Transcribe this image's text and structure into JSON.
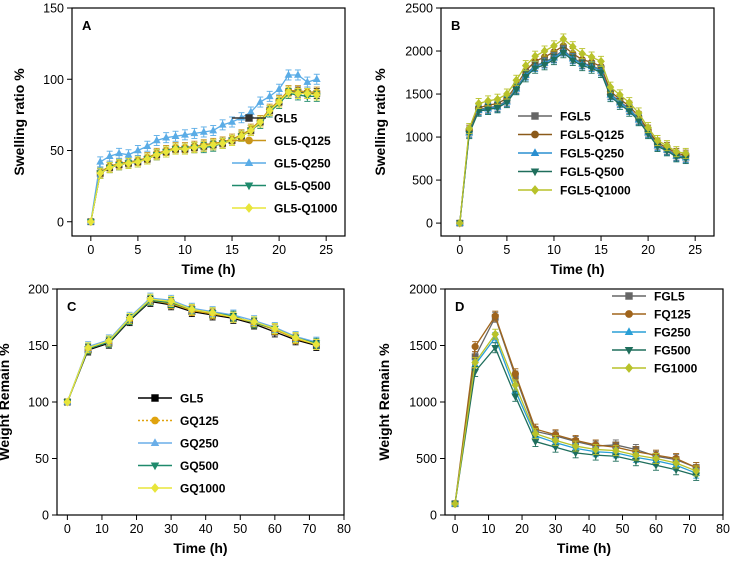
{
  "chart_data": [
    {
      "type": "line",
      "panel_label": "A",
      "xlabel": "Time (h)",
      "ylabel": "Swelling ratio %",
      "xlim": [
        -2,
        27
      ],
      "ylim": [
        -10,
        150
      ],
      "xticks": [
        0,
        5,
        10,
        15,
        20,
        25
      ],
      "yticks": [
        0,
        50,
        100,
        150
      ],
      "legend_position": "bottom-right",
      "x": [
        0,
        1,
        2,
        3,
        4,
        5,
        6,
        7,
        8,
        9,
        10,
        11,
        12,
        13,
        14,
        15,
        16,
        17,
        18,
        19,
        20,
        21,
        22,
        23,
        24
      ],
      "series": [
        {
          "name": "GL5",
          "color": "#333333",
          "marker": "square",
          "values": [
            0,
            34,
            38,
            40,
            41,
            42,
            44,
            47,
            49,
            51,
            51,
            52,
            53,
            54,
            55,
            57,
            60,
            64,
            70,
            78,
            84,
            91,
            91,
            90,
            90
          ]
        },
        {
          "name": "GL5-Q125",
          "color": "#c8951a",
          "marker": "circle",
          "values": [
            0,
            35,
            39,
            41,
            42,
            43,
            45,
            48,
            50,
            52,
            52,
            53,
            54,
            55,
            56,
            58,
            61,
            65,
            71,
            79,
            85,
            92,
            92,
            91,
            91
          ]
        },
        {
          "name": "GL5-Q250",
          "color": "#5aace6",
          "marker": "triangle",
          "values": [
            0,
            42,
            46,
            48,
            47,
            50,
            53,
            57,
            59,
            60,
            61,
            62,
            63,
            64,
            68,
            70,
            73,
            77,
            84,
            88,
            93,
            103,
            103,
            98,
            100
          ]
        },
        {
          "name": "GL5-Q500",
          "color": "#1f8a6c",
          "marker": "triangle-down",
          "values": [
            0,
            34,
            38,
            40,
            41,
            42,
            44,
            47,
            49,
            51,
            51,
            52,
            52,
            53,
            55,
            57,
            60,
            64,
            69,
            77,
            83,
            90,
            89,
            88,
            88
          ]
        },
        {
          "name": "GL5-Q1000",
          "color": "#e8e53a",
          "marker": "diamond",
          "values": [
            0,
            34,
            38,
            40,
            41,
            42,
            44,
            47,
            49,
            51,
            51,
            52,
            53,
            54,
            55,
            57,
            60,
            64,
            70,
            78,
            84,
            91,
            90,
            90,
            89
          ]
        }
      ]
    },
    {
      "type": "line",
      "panel_label": "B",
      "xlabel": "Time (h)",
      "ylabel": "Swelling ratio %",
      "xlim": [
        -2,
        27
      ],
      "ylim": [
        -150,
        2500
      ],
      "xticks": [
        0,
        5,
        10,
        15,
        20,
        25
      ],
      "yticks": [
        0,
        500,
        1000,
        1500,
        2000,
        2500
      ],
      "legend_position": "bottom-left",
      "x": [
        0,
        1,
        2,
        3,
        4,
        5,
        6,
        7,
        8,
        9,
        10,
        11,
        12,
        13,
        14,
        15,
        16,
        17,
        18,
        19,
        20,
        21,
        22,
        23,
        24
      ],
      "series": [
        {
          "name": "FGL5",
          "color": "#666666",
          "marker": "square",
          "values": [
            0,
            1060,
            1320,
            1340,
            1360,
            1420,
            1570,
            1730,
            1830,
            1870,
            1930,
            2010,
            1920,
            1860,
            1830,
            1780,
            1500,
            1410,
            1330,
            1210,
            1060,
            910,
            860,
            790,
            770
          ]
        },
        {
          "name": "FGL5-Q125",
          "color": "#8b5a1a",
          "marker": "circle",
          "values": [
            0,
            1080,
            1340,
            1370,
            1390,
            1450,
            1600,
            1770,
            1880,
            1930,
            1990,
            2060,
            1970,
            1900,
            1870,
            1820,
            1530,
            1440,
            1360,
            1240,
            1080,
            930,
            880,
            810,
            790
          ]
        },
        {
          "name": "FGL5-Q250",
          "color": "#2a8fd0",
          "marker": "triangle",
          "values": [
            0,
            1050,
            1310,
            1330,
            1350,
            1410,
            1560,
            1720,
            1820,
            1860,
            1920,
            2000,
            1910,
            1850,
            1820,
            1770,
            1490,
            1400,
            1320,
            1200,
            1050,
            900,
            850,
            780,
            760
          ]
        },
        {
          "name": "FGL5-Q500",
          "color": "#1f6e5c",
          "marker": "triangle-down",
          "values": [
            0,
            1040,
            1300,
            1320,
            1340,
            1400,
            1550,
            1700,
            1800,
            1840,
            1900,
            1980,
            1890,
            1830,
            1800,
            1750,
            1470,
            1380,
            1300,
            1190,
            1040,
            890,
            840,
            770,
            750
          ]
        },
        {
          "name": "FGL5-Q1000",
          "color": "#b8c22a",
          "marker": "diamond",
          "values": [
            0,
            1100,
            1390,
            1420,
            1440,
            1500,
            1660,
            1830,
            1940,
            2000,
            2060,
            2140,
            2050,
            1970,
            1930,
            1880,
            1580,
            1490,
            1400,
            1280,
            1110,
            960,
            900,
            830,
            810
          ]
        }
      ]
    },
    {
      "type": "line",
      "panel_label": "C",
      "xlabel": "Time (h)",
      "ylabel": "Weight Remain %",
      "xlim": [
        -3,
        80
      ],
      "ylim": [
        0,
        200
      ],
      "xticks": [
        0,
        10,
        20,
        30,
        40,
        50,
        60,
        70,
        80
      ],
      "yticks": [
        0,
        50,
        100,
        150,
        200
      ],
      "legend_position": "bottom-center",
      "x": [
        0,
        6,
        12,
        18,
        24,
        30,
        36,
        42,
        48,
        54,
        60,
        66,
        72
      ],
      "series": [
        {
          "name": "GL5",
          "color": "#000000",
          "marker": "square",
          "values": [
            100,
            146,
            152,
            172,
            189,
            186,
            180,
            177,
            174,
            169,
            162,
            155,
            150
          ]
        },
        {
          "name": "GQ125",
          "color": "#e0a30e",
          "marker": "circle",
          "values": [
            100,
            147,
            153,
            173,
            190,
            187,
            181,
            178,
            175,
            170,
            164,
            156,
            151
          ]
        },
        {
          "name": "GQ250",
          "color": "#6aaee8",
          "marker": "triangle",
          "values": [
            100,
            149,
            155,
            175,
            192,
            190,
            183,
            180,
            177,
            172,
            166,
            158,
            153
          ]
        },
        {
          "name": "GQ500",
          "color": "#1f8a6c",
          "marker": "triangle-down",
          "values": [
            100,
            147,
            153,
            173,
            190,
            188,
            182,
            179,
            176,
            170,
            165,
            157,
            152
          ]
        },
        {
          "name": "GQ1000",
          "color": "#e8e53a",
          "marker": "diamond",
          "values": [
            100,
            148,
            154,
            174,
            191,
            189,
            182,
            179,
            175,
            171,
            165,
            157,
            151
          ]
        }
      ]
    },
    {
      "type": "line",
      "panel_label": "D",
      "xlabel": "Time (h)",
      "ylabel": "Weight Remain %",
      "xlim": [
        -3,
        80
      ],
      "ylim": [
        0,
        2000
      ],
      "xticks": [
        0,
        10,
        20,
        30,
        40,
        50,
        60,
        70,
        80
      ],
      "yticks": [
        0,
        500,
        1000,
        1500,
        2000
      ],
      "legend_position": "top-right",
      "x": [
        0,
        6,
        12,
        18,
        24,
        30,
        36,
        42,
        48,
        54,
        60,
        66,
        72
      ],
      "series": [
        {
          "name": "FGL5",
          "color": "#666666",
          "marker": "square",
          "values": [
            100,
            1400,
            1750,
            1230,
            740,
            700,
            650,
            610,
            620,
            580,
            520,
            490,
            420
          ]
        },
        {
          "name": "FQ125",
          "color": "#a0651c",
          "marker": "circle",
          "values": [
            100,
            1490,
            1760,
            1250,
            760,
            710,
            660,
            620,
            600,
            560,
            530,
            500,
            420
          ]
        },
        {
          "name": "FG250",
          "color": "#2a9fd6",
          "marker": "triangle",
          "values": [
            100,
            1330,
            1570,
            1100,
            700,
            640,
            590,
            560,
            550,
            510,
            480,
            440,
            370
          ]
        },
        {
          "name": "FG500",
          "color": "#1f6e5c",
          "marker": "triangle-down",
          "values": [
            100,
            1270,
            1480,
            1050,
            650,
            600,
            550,
            530,
            520,
            480,
            440,
            400,
            350
          ]
        },
        {
          "name": "FG1000",
          "color": "#b8c22a",
          "marker": "diamond",
          "values": [
            100,
            1350,
            1600,
            1150,
            720,
            660,
            610,
            580,
            570,
            530,
            500,
            460,
            390
          ]
        }
      ]
    }
  ]
}
